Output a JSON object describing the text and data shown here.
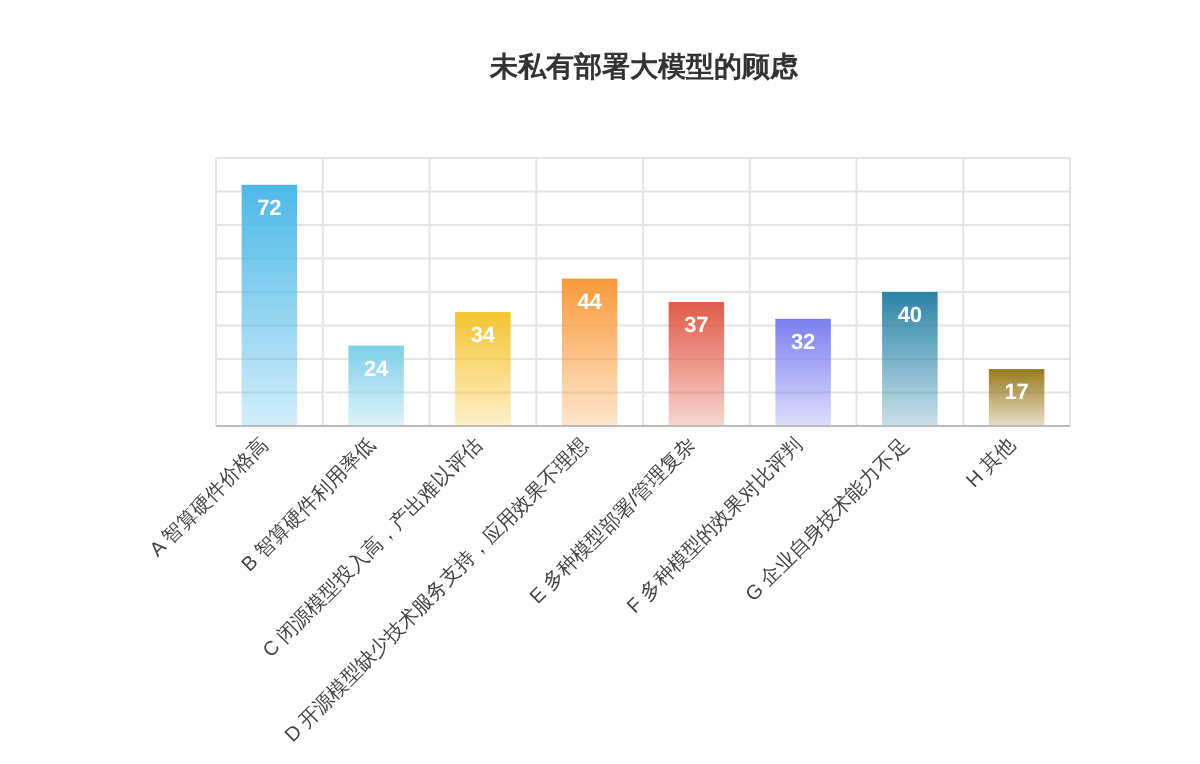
{
  "chart_data": {
    "type": "bar",
    "title": "未私有部署大模型的顾虑",
    "categories": [
      "A 智算硬件价格高",
      "B 智算硬件利用率低",
      "C 闭源模型投入高，产出难以评估",
      "D 开源模型缺少技术服务支持，应用效果不理想",
      "E 多种模型部署/管理复杂",
      "F 多种模型的效果对比评判",
      "G 企业自身技术能力不足",
      "H 其他"
    ],
    "values": [
      72,
      24,
      34,
      44,
      37,
      32,
      40,
      17
    ],
    "colors": [
      "#4cb8e8",
      "#7dcfe8",
      "#f5c431",
      "#fa9a3a",
      "#e05a48",
      "#7b7ef0",
      "#2b84a8",
      "#9a7a20"
    ],
    "ylim": [
      0,
      80
    ],
    "yticks": [
      {
        "value": 0,
        "label": null
      },
      {
        "value": 10,
        "label": null
      },
      {
        "value": 20,
        "label": null
      },
      {
        "value": 30,
        "label": null
      },
      {
        "value": 40,
        "label": null
      },
      {
        "value": 50,
        "label": null
      },
      {
        "value": 60,
        "label": null
      },
      {
        "value": 70,
        "label": null
      },
      {
        "value": 80,
        "label": null
      }
    ],
    "tick_labels": "x",
    "grid": true,
    "data_labels": true
  }
}
